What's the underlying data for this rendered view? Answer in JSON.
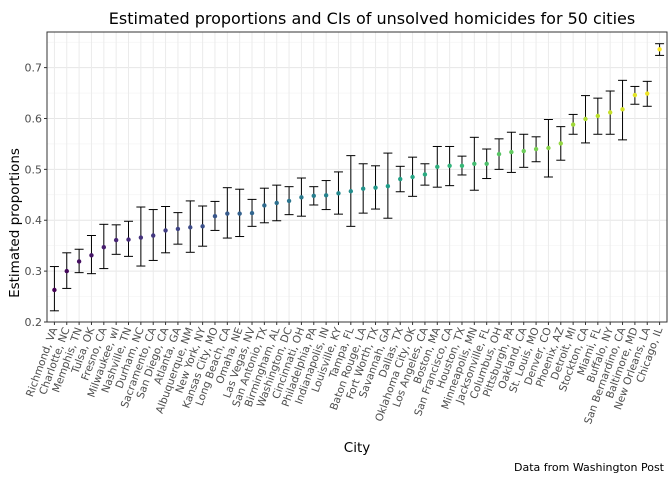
{
  "chart_data": {
    "type": "scatter",
    "title": "Estimated proportions and CIs of unsolved homicides for 50 cities",
    "xlabel": "City",
    "ylabel": "Estimated proportions",
    "caption": "Data from Washington Post",
    "ylim": [
      0.2,
      0.77
    ],
    "yticks": [
      0.2,
      0.3,
      0.4,
      0.5,
      0.6,
      0.7
    ],
    "grid": true,
    "color_scale": "viridis",
    "points": [
      {
        "city": "Richmond, VA",
        "estimate": 0.263,
        "lower": 0.222,
        "upper": 0.309
      },
      {
        "city": "Charlotte, NC",
        "estimate": 0.3,
        "lower": 0.266,
        "upper": 0.336
      },
      {
        "city": "Memphis, TN",
        "estimate": 0.319,
        "lower": 0.297,
        "upper": 0.343
      },
      {
        "city": "Tulsa, OK",
        "estimate": 0.331,
        "lower": 0.295,
        "upper": 0.37
      },
      {
        "city": "Fresno, CA",
        "estimate": 0.347,
        "lower": 0.305,
        "upper": 0.392
      },
      {
        "city": "Milwaukee, wI",
        "estimate": 0.361,
        "lower": 0.333,
        "upper": 0.391
      },
      {
        "city": "Nashville, TN",
        "estimate": 0.362,
        "lower": 0.329,
        "upper": 0.398
      },
      {
        "city": "Durham, NC",
        "estimate": 0.366,
        "lower": 0.31,
        "upper": 0.426
      },
      {
        "city": "Sacramento, CA",
        "estimate": 0.37,
        "lower": 0.321,
        "upper": 0.421
      },
      {
        "city": "San Diego, CA",
        "estimate": 0.38,
        "lower": 0.336,
        "upper": 0.427
      },
      {
        "city": "Atlanta, GA",
        "estimate": 0.383,
        "lower": 0.353,
        "upper": 0.415
      },
      {
        "city": "Albuquerque, NM",
        "estimate": 0.386,
        "lower": 0.337,
        "upper": 0.438
      },
      {
        "city": "New York, NY",
        "estimate": 0.388,
        "lower": 0.349,
        "upper": 0.428
      },
      {
        "city": "Kansas City, MO",
        "estimate": 0.408,
        "lower": 0.38,
        "upper": 0.437
      },
      {
        "city": "Long Beach, CA",
        "estimate": 0.413,
        "lower": 0.365,
        "upper": 0.464
      },
      {
        "city": "Omaha, NE",
        "estimate": 0.413,
        "lower": 0.368,
        "upper": 0.461
      },
      {
        "city": "Las Vegas, NV",
        "estimate": 0.414,
        "lower": 0.388,
        "upper": 0.441
      },
      {
        "city": "San Antonio, TX",
        "estimate": 0.429,
        "lower": 0.395,
        "upper": 0.463
      },
      {
        "city": "Birmingham, AL",
        "estimate": 0.434,
        "lower": 0.399,
        "upper": 0.469
      },
      {
        "city": "Washington, DC",
        "estimate": 0.438,
        "lower": 0.411,
        "upper": 0.466
      },
      {
        "city": "Cincinnati, OH",
        "estimate": 0.445,
        "lower": 0.408,
        "upper": 0.483
      },
      {
        "city": "Philadelphia, PA",
        "estimate": 0.448,
        "lower": 0.43,
        "upper": 0.466
      },
      {
        "city": "Indianapolis, IN",
        "estimate": 0.449,
        "lower": 0.421,
        "upper": 0.478
      },
      {
        "city": "Louisville, KY",
        "estimate": 0.453,
        "lower": 0.412,
        "upper": 0.495
      },
      {
        "city": "Tampa, FL",
        "estimate": 0.457,
        "lower": 0.388,
        "upper": 0.527
      },
      {
        "city": "Baton Rouge, LA",
        "estimate": 0.462,
        "lower": 0.414,
        "upper": 0.511
      },
      {
        "city": "Fort Worth, TX",
        "estimate": 0.464,
        "lower": 0.422,
        "upper": 0.507
      },
      {
        "city": "Savannah, GA",
        "estimate": 0.467,
        "lower": 0.404,
        "upper": 0.532
      },
      {
        "city": "Dallas, TX",
        "estimate": 0.481,
        "lower": 0.456,
        "upper": 0.506
      },
      {
        "city": "Oklahoma City, OK",
        "estimate": 0.485,
        "lower": 0.447,
        "upper": 0.524
      },
      {
        "city": "Los Angeles, CA",
        "estimate": 0.49,
        "lower": 0.469,
        "upper": 0.511
      },
      {
        "city": "Boston, MA",
        "estimate": 0.505,
        "lower": 0.465,
        "upper": 0.545
      },
      {
        "city": "San Francisco, CA",
        "estimate": 0.507,
        "lower": 0.468,
        "upper": 0.545
      },
      {
        "city": "Houston, TX",
        "estimate": 0.507,
        "lower": 0.489,
        "upper": 0.526
      },
      {
        "city": "Minneapolis, MN",
        "estimate": 0.511,
        "lower": 0.459,
        "upper": 0.563
      },
      {
        "city": "Jacksonville, FL",
        "estimate": 0.511,
        "lower": 0.482,
        "upper": 0.54
      },
      {
        "city": "Columbus, OH",
        "estimate": 0.53,
        "lower": 0.5,
        "upper": 0.56
      },
      {
        "city": "Pittsburgh, PA",
        "estimate": 0.534,
        "lower": 0.494,
        "upper": 0.573
      },
      {
        "city": "Oakland, CA",
        "estimate": 0.536,
        "lower": 0.504,
        "upper": 0.569
      },
      {
        "city": "St. Louis, MO",
        "estimate": 0.54,
        "lower": 0.515,
        "upper": 0.564
      },
      {
        "city": "Denver, CO",
        "estimate": 0.542,
        "lower": 0.485,
        "upper": 0.598
      },
      {
        "city": "Phoenix, AZ",
        "estimate": 0.551,
        "lower": 0.518,
        "upper": 0.584
      },
      {
        "city": "Detroit, MI",
        "estimate": 0.588,
        "lower": 0.569,
        "upper": 0.608
      },
      {
        "city": "Stockton, CA",
        "estimate": 0.599,
        "lower": 0.552,
        "upper": 0.645
      },
      {
        "city": "Miami, FL",
        "estimate": 0.605,
        "lower": 0.569,
        "upper": 0.64
      },
      {
        "city": "Buffalo, NY",
        "estimate": 0.612,
        "lower": 0.569,
        "upper": 0.654
      },
      {
        "city": "San Bernardino, CA",
        "estimate": 0.618,
        "lower": 0.558,
        "upper": 0.675
      },
      {
        "city": "Baltimore, MD",
        "estimate": 0.646,
        "lower": 0.628,
        "upper": 0.663
      },
      {
        "city": "New Orleans, LA",
        "estimate": 0.649,
        "lower": 0.624,
        "upper": 0.673
      },
      {
        "city": "Chicago, IL",
        "estimate": 0.736,
        "lower": 0.724,
        "upper": 0.747
      }
    ]
  }
}
